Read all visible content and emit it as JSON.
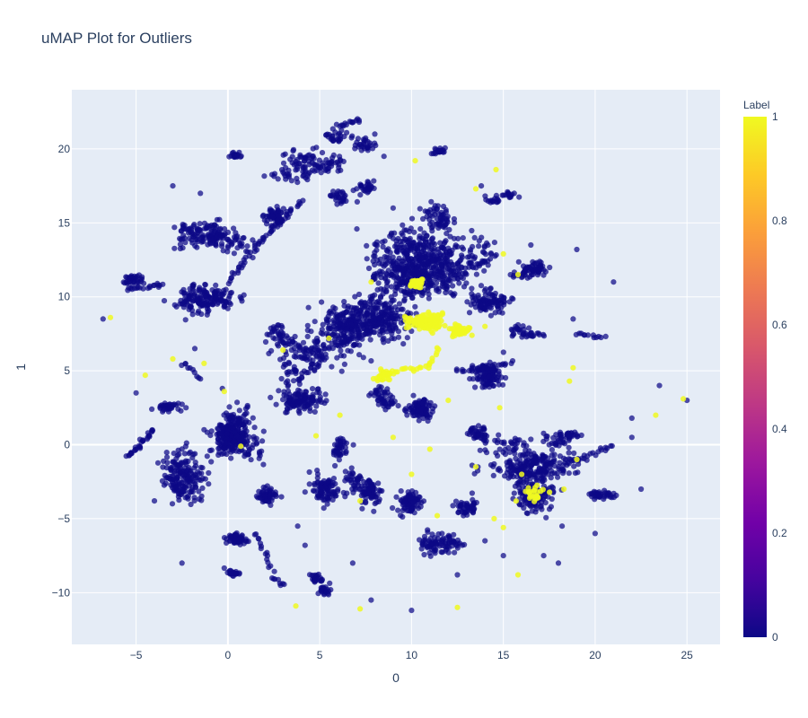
{
  "chart_data": {
    "type": "scatter",
    "title": "uMAP Plot for Outliers",
    "xlabel": "0",
    "ylabel": "1",
    "xlim": [
      -8.5,
      26.8
    ],
    "ylim": [
      -13.5,
      24
    ],
    "x_ticks": [
      -5,
      0,
      5,
      10,
      15,
      20,
      25
    ],
    "x_tick_labels": [
      "−5",
      "0",
      "5",
      "10",
      "15",
      "20",
      "25"
    ],
    "y_ticks": [
      -10,
      -5,
      0,
      5,
      10,
      15,
      20
    ],
    "y_tick_labels": [
      "−10",
      "−5",
      "0",
      "5",
      "10",
      "15",
      "20"
    ],
    "grid": true,
    "background": "#e5ecf6",
    "colorbar": {
      "title": "Label",
      "min": 0,
      "max": 1,
      "ticks": [
        0,
        0.2,
        0.4,
        0.6,
        0.8,
        1
      ],
      "tick_labels": [
        "0",
        "0.2",
        "0.4",
        "0.6",
        "0.8",
        "1"
      ],
      "colorscale": [
        "#0d0887",
        "#46039f",
        "#7201a8",
        "#9c179e",
        "#bd3786",
        "#d8576b",
        "#ed7953",
        "#fb9f3a",
        "#fdca26",
        "#f0f921"
      ]
    },
    "series": [
      {
        "label": 0,
        "color": "#0d0887",
        "clusters": [
          {
            "cx": 10.5,
            "cy": 12.0,
            "sx": 1.8,
            "sy": 1.6,
            "n": 650
          },
          {
            "cx": 8.0,
            "cy": 8.5,
            "sx": 1.6,
            "sy": 1.2,
            "n": 420
          },
          {
            "cx": 0.3,
            "cy": 0.5,
            "sx": 0.9,
            "sy": 1.1,
            "n": 280
          },
          {
            "cx": -1.3,
            "cy": 14.0,
            "sx": 1.2,
            "sy": 0.8,
            "n": 160
          },
          {
            "cx": -0.5,
            "cy": 10.0,
            "sx": 1.4,
            "sy": 0.8,
            "n": 170
          },
          {
            "cx": 3.5,
            "cy": 6.5,
            "sx": 1.0,
            "sy": 1.0,
            "n": 160
          },
          {
            "cx": 15.5,
            "cy": -1.0,
            "sx": 1.9,
            "sy": 0.7,
            "n": 220
          },
          {
            "cx": 16.8,
            "cy": -3.5,
            "sx": 1.0,
            "sy": 1.0,
            "n": 170
          },
          {
            "cx": 11.0,
            "cy": 2.0,
            "sx": 0.7,
            "sy": 0.7,
            "n": 100
          },
          {
            "cx": 14.5,
            "cy": 4.5,
            "sx": 0.8,
            "sy": 0.8,
            "n": 120
          },
          {
            "cx": 4.0,
            "cy": 2.5,
            "sx": 1.2,
            "sy": 0.7,
            "n": 120
          },
          {
            "cx": -2.5,
            "cy": -2.5,
            "sx": 0.9,
            "sy": 1.5,
            "n": 180
          },
          {
            "cx": 4.5,
            "cy": 19.0,
            "sx": 1.2,
            "sy": 0.8,
            "n": 110
          },
          {
            "cx": 6.2,
            "cy": 20.8,
            "sx": 0.9,
            "sy": 0.5,
            "n": 55
          },
          {
            "cx": 2.8,
            "cy": 15.5,
            "sx": 0.6,
            "sy": 0.6,
            "n": 70
          },
          {
            "cx": -5.0,
            "cy": 11.2,
            "sx": 0.4,
            "sy": 0.4,
            "n": 40
          },
          {
            "cx": 7.0,
            "cy": 17.0,
            "sx": 0.7,
            "sy": 0.5,
            "n": 55
          },
          {
            "cx": 13.5,
            "cy": 10.0,
            "sx": 0.9,
            "sy": 0.9,
            "n": 100
          },
          {
            "cx": 16.5,
            "cy": 11.5,
            "sx": 0.8,
            "sy": 0.5,
            "n": 70
          },
          {
            "cx": 5.0,
            "cy": -3.0,
            "sx": 0.6,
            "sy": 0.9,
            "n": 90
          },
          {
            "cx": 7.5,
            "cy": -2.5,
            "sx": 0.7,
            "sy": 1.1,
            "n": 110
          },
          {
            "cx": 11.5,
            "cy": -6.5,
            "sx": 0.8,
            "sy": 0.8,
            "n": 90
          },
          {
            "cx": 9.5,
            "cy": -4.0,
            "sx": 0.7,
            "sy": 0.8,
            "n": 80
          },
          {
            "cx": 5.0,
            "cy": -9.5,
            "sx": 0.4,
            "sy": 0.4,
            "n": 45
          },
          {
            "cx": 0.5,
            "cy": -6.2,
            "sx": 0.5,
            "sy": 0.4,
            "n": 55
          },
          {
            "cx": 0.2,
            "cy": -8.8,
            "sx": 0.4,
            "sy": 0.2,
            "n": 25
          },
          {
            "cx": 2.0,
            "cy": -3.5,
            "sx": 0.5,
            "sy": 0.6,
            "n": 55
          },
          {
            "cx": -3.5,
            "cy": 2.5,
            "sx": 0.6,
            "sy": 0.3,
            "n": 35
          },
          {
            "cx": 20.3,
            "cy": -3.5,
            "sx": 0.6,
            "sy": 0.3,
            "n": 40
          },
          {
            "cx": 13.0,
            "cy": -4.0,
            "sx": 0.5,
            "sy": 0.6,
            "n": 45
          },
          {
            "cx": 15.0,
            "cy": 16.5,
            "sx": 0.5,
            "sy": 0.3,
            "n": 30
          },
          {
            "cx": 18.5,
            "cy": 0.3,
            "sx": 0.7,
            "sy": 0.6,
            "n": 50
          },
          {
            "cx": 8.5,
            "cy": 3.0,
            "sx": 0.6,
            "sy": 0.5,
            "n": 50
          },
          {
            "cx": 6.5,
            "cy": 0.0,
            "sx": 0.5,
            "sy": 0.4,
            "n": 40
          },
          {
            "cx": 11.5,
            "cy": 20.0,
            "sx": 0.4,
            "sy": 0.2,
            "n": 20
          },
          {
            "cx": 0.5,
            "cy": 19.5,
            "sx": 0.3,
            "sy": 0.3,
            "n": 20
          },
          {
            "cx": 11.0,
            "cy": 15.5,
            "sx": 0.7,
            "sy": 0.6,
            "n": 55
          },
          {
            "cx": 13.5,
            "cy": 0.8,
            "sx": 0.6,
            "sy": 0.5,
            "n": 40
          },
          {
            "cx": 16.5,
            "cy": 7.5,
            "sx": 0.6,
            "sy": 0.5,
            "n": 35
          }
        ],
        "paths": [
          {
            "from": [
              -5.5,
              -0.8
            ],
            "to": [
              -4.0,
              1.0
            ],
            "n": 30
          },
          {
            "from": [
              0.0,
              11.0
            ],
            "to": [
              2.0,
              14.0
            ],
            "n": 30
          },
          {
            "from": [
              2.0,
              14.0
            ],
            "to": [
              4.0,
              16.5
            ],
            "n": 25
          },
          {
            "from": [
              6.0,
              21.5
            ],
            "to": [
              7.2,
              22.0
            ],
            "n": 15
          },
          {
            "from": [
              18.0,
              -1.5
            ],
            "to": [
              21.0,
              0.0
            ],
            "n": 25
          },
          {
            "from": [
              12.5,
              5.0
            ],
            "to": [
              15.5,
              5.5
            ],
            "n": 25
          },
          {
            "from": [
              -2.5,
              5.5
            ],
            "to": [
              -1.5,
              4.5
            ],
            "n": 10
          },
          {
            "from": [
              1.5,
              -6.0
            ],
            "to": [
              2.5,
              -8.5
            ],
            "n": 15
          },
          {
            "from": [
              19.0,
              7.5
            ],
            "to": [
              20.5,
              7.2
            ],
            "n": 12
          },
          {
            "from": [
              -5.5,
              10.5
            ],
            "to": [
              -3.5,
              10.8
            ],
            "n": 20
          },
          {
            "from": [
              2.5,
              -9.0
            ],
            "to": [
              3.0,
              -9.5
            ],
            "n": 8
          }
        ],
        "singles": [
          [
            -6.8,
            8.5
          ],
          [
            -5.0,
            3.5
          ],
          [
            -4.0,
            -3.8
          ],
          [
            -3.0,
            17.5
          ],
          [
            -1.5,
            17.0
          ],
          [
            -2.5,
            -8.0
          ],
          [
            21.0,
            11.0
          ],
          [
            19.0,
            13.2
          ],
          [
            25.0,
            3.0
          ],
          [
            23.5,
            4.0
          ],
          [
            22.0,
            0.5
          ],
          [
            22.0,
            1.8
          ],
          [
            10.0,
            -11.2
          ],
          [
            15.0,
            -7.5
          ],
          [
            18.0,
            -8.0
          ],
          [
            22.5,
            -3.0
          ],
          [
            20.0,
            -6.0
          ],
          [
            8.5,
            19.5
          ],
          [
            9.0,
            16.0
          ],
          [
            13.8,
            17.5
          ],
          [
            18.8,
            8.5
          ],
          [
            16.5,
            13.5
          ],
          [
            17.2,
            -7.5
          ],
          [
            18.2,
            -5.5
          ],
          [
            7.8,
            -10.5
          ],
          [
            6.8,
            -8.0
          ],
          [
            -1.8,
            6.5
          ],
          [
            -0.3,
            3.8
          ],
          [
            12.5,
            -8.8
          ],
          [
            14.0,
            -6.5
          ],
          [
            4.2,
            -6.8
          ],
          [
            3.8,
            -5.5
          ],
          [
            6.0,
            18.5
          ],
          [
            8.0,
            21.0
          ]
        ]
      },
      {
        "label": 1,
        "color": "#f0f921",
        "clusters": [
          {
            "cx": 10.8,
            "cy": 8.5,
            "sx": 0.7,
            "sy": 0.6,
            "n": 130
          },
          {
            "cx": 12.5,
            "cy": 7.6,
            "sx": 0.5,
            "sy": 0.3,
            "n": 45
          },
          {
            "cx": 8.5,
            "cy": 4.8,
            "sx": 0.4,
            "sy": 0.3,
            "n": 40
          },
          {
            "cx": 10.0,
            "cy": 10.7,
            "sx": 0.3,
            "sy": 0.3,
            "n": 30
          },
          {
            "cx": 16.8,
            "cy": -3.4,
            "sx": 0.8,
            "sy": 0.3,
            "n": 25
          }
        ],
        "paths": [
          {
            "from": [
              9.0,
              5.0
            ],
            "to": [
              11.0,
              5.3
            ],
            "n": 15
          },
          {
            "from": [
              11.0,
              5.3
            ],
            "to": [
              11.5,
              6.5
            ],
            "n": 8
          }
        ],
        "singles": [
          [
            -6.4,
            8.6
          ],
          [
            -4.5,
            4.7
          ],
          [
            -3.0,
            5.8
          ],
          [
            -1.3,
            5.5
          ],
          [
            -0.2,
            3.6
          ],
          [
            7.8,
            11.0
          ],
          [
            10.2,
            19.2
          ],
          [
            14.6,
            18.6
          ],
          [
            13.5,
            17.3
          ],
          [
            15.0,
            12.9
          ],
          [
            23.3,
            2.0
          ],
          [
            24.8,
            3.1
          ],
          [
            3.7,
            -10.9
          ],
          [
            7.2,
            -11.1
          ],
          [
            12.5,
            -11.0
          ],
          [
            15.8,
            -8.8
          ],
          [
            11.4,
            -4.8
          ],
          [
            15.0,
            -5.6
          ],
          [
            18.6,
            4.3
          ],
          [
            18.8,
            5.2
          ],
          [
            19.0,
            -1.0
          ],
          [
            9.0,
            0.5
          ],
          [
            11.0,
            -0.3
          ],
          [
            6.1,
            2.0
          ],
          [
            3.0,
            6.4
          ],
          [
            0.7,
            -0.1
          ],
          [
            7.2,
            -3.8
          ],
          [
            14.5,
            -5.0
          ],
          [
            10.0,
            -2.0
          ],
          [
            18.3,
            -3.0
          ],
          [
            15.8,
            11.5
          ],
          [
            14.0,
            8.0
          ],
          [
            5.5,
            7.2
          ],
          [
            4.8,
            0.6
          ],
          [
            12.0,
            3.0
          ],
          [
            13.5,
            -1.5
          ],
          [
            14.8,
            2.5
          ],
          [
            16.0,
            -2.0
          ]
        ]
      }
    ]
  }
}
